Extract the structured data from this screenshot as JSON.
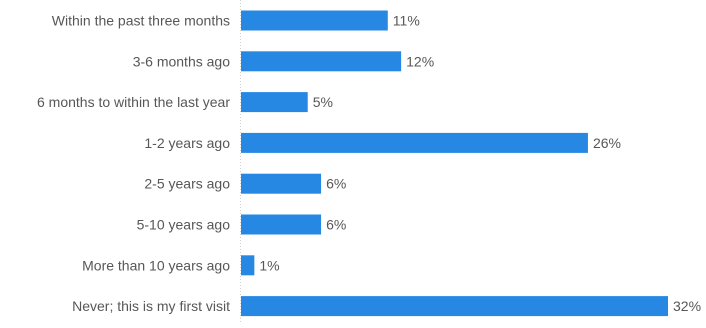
{
  "chart_data": {
    "type": "bar",
    "orientation": "horizontal",
    "categories": [
      "Within the past three months",
      "3-6 months ago",
      "6 months to within the last year",
      "1-2 years ago",
      "2-5 years ago",
      "5-10 years ago",
      "More than 10 years ago",
      "Never; this is my first visit"
    ],
    "values": [
      11,
      12,
      5,
      26,
      6,
      6,
      1,
      32
    ],
    "value_labels": [
      "11%",
      "12%",
      "5%",
      "26%",
      "6%",
      "6%",
      "1%",
      "32%"
    ],
    "unit": "%",
    "xlim": [
      0,
      32
    ],
    "grid": false,
    "legend": "none",
    "colors": {
      "bar": "#2688e3",
      "label": "#575757",
      "axis": "#d0d0d0"
    }
  }
}
